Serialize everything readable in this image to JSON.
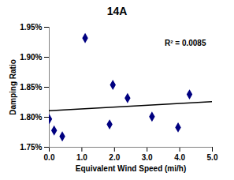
{
  "chart_data": {
    "type": "scatter",
    "title": "14A",
    "x_label": "Equivalent Wind Speed (mi/h)",
    "y_label": "Damping Ratio",
    "x": [
      0.0,
      0.15,
      0.4,
      1.1,
      1.85,
      1.95,
      2.4,
      3.15,
      3.95,
      4.3
    ],
    "values": [
      1.797,
      1.778,
      1.768,
      1.932,
      1.788,
      1.854,
      1.832,
      1.801,
      1.783,
      1.838
    ],
    "color": "#000080",
    "marker": "diamond",
    "trendline": {
      "x": [
        0,
        5
      ],
      "values": [
        1.811,
        1.826
      ],
      "color": "#000000"
    },
    "annotations": [
      "R² = 0.0085"
    ],
    "xlim": [
      0,
      5
    ],
    "xticks": [
      {
        "value": 0,
        "label": "0.0"
      },
      {
        "value": 1,
        "label": "1.0"
      },
      {
        "value": 2,
        "label": "2.0"
      },
      {
        "value": 3,
        "label": "3.0"
      },
      {
        "value": 4,
        "label": "4.0"
      },
      {
        "value": 5,
        "label": "5.0"
      }
    ],
    "ylim": [
      1.75,
      1.95
    ],
    "yticks": [
      {
        "value": 1.75,
        "label": "1.75%"
      },
      {
        "value": 1.8,
        "label": "1.80%"
      },
      {
        "value": 1.85,
        "label": "1.85%"
      },
      {
        "value": 1.9,
        "label": "1.90%"
      },
      {
        "value": 1.95,
        "label": "1.95%"
      }
    ],
    "grid": false
  }
}
